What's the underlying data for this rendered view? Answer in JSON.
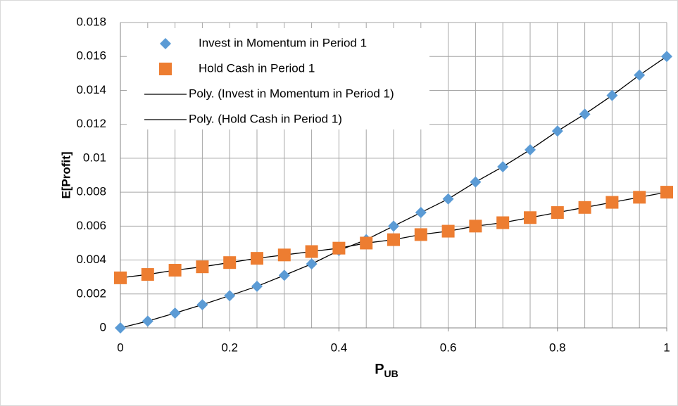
{
  "chart_data": {
    "type": "scatter",
    "xlabel": {
      "text": "P",
      "subscript": "UB"
    },
    "ylabel": "E[Profit]",
    "x": [
      0,
      0.05,
      0.1,
      0.15,
      0.2,
      0.25,
      0.3,
      0.35,
      0.4,
      0.45,
      0.5,
      0.55,
      0.6,
      0.65,
      0.7,
      0.75,
      0.8,
      0.85,
      0.9,
      0.95,
      1
    ],
    "series": [
      {
        "name": "Invest in Momentum in Period 1",
        "color": "#5b9bd5",
        "marker": "diamond",
        "values": [
          0,
          0.0004,
          0.00087,
          0.00137,
          0.0019,
          0.00245,
          0.0031,
          0.00377,
          0.00456,
          0.0052,
          0.006,
          0.0068,
          0.0076,
          0.0086,
          0.0095,
          0.0105,
          0.0116,
          0.0126,
          0.0137,
          0.0149,
          0.016
        ]
      },
      {
        "name": "Hold Cash in Period 1",
        "color": "#ed7d31",
        "marker": "square",
        "values": [
          0.00295,
          0.00315,
          0.0034,
          0.0036,
          0.00385,
          0.0041,
          0.0043,
          0.0045,
          0.0047,
          0.005,
          0.0052,
          0.0055,
          0.0057,
          0.006,
          0.0062,
          0.0065,
          0.0068,
          0.0071,
          0.0074,
          0.0077,
          0.008
        ]
      },
      {
        "name": "Poly. (Invest in Momentum in Period 1)",
        "color": "#000000",
        "marker": "line",
        "values": [
          0,
          0.0004,
          0.00087,
          0.00137,
          0.0019,
          0.00245,
          0.0031,
          0.00377,
          0.00456,
          0.0052,
          0.006,
          0.0068,
          0.0076,
          0.0086,
          0.0095,
          0.0105,
          0.0116,
          0.0126,
          0.0137,
          0.0149,
          0.016
        ]
      },
      {
        "name": "Poly. (Hold Cash in Period 1)",
        "color": "#000000",
        "marker": "line",
        "values": [
          0.00295,
          0.00315,
          0.0034,
          0.0036,
          0.00385,
          0.0041,
          0.0043,
          0.0045,
          0.0047,
          0.005,
          0.0052,
          0.0055,
          0.0057,
          0.006,
          0.0062,
          0.0065,
          0.0068,
          0.0071,
          0.0074,
          0.0077,
          0.008
        ]
      }
    ],
    "xlim": [
      0,
      1
    ],
    "xticks": [
      0,
      0.2,
      0.4,
      0.6,
      0.8,
      1
    ],
    "ylim": [
      0,
      0.018
    ],
    "yticks": [
      0,
      0.002,
      0.004,
      0.006,
      0.008,
      0.01,
      0.012,
      0.014,
      0.016,
      0.018
    ],
    "grid": true,
    "legend": "upper-left"
  }
}
